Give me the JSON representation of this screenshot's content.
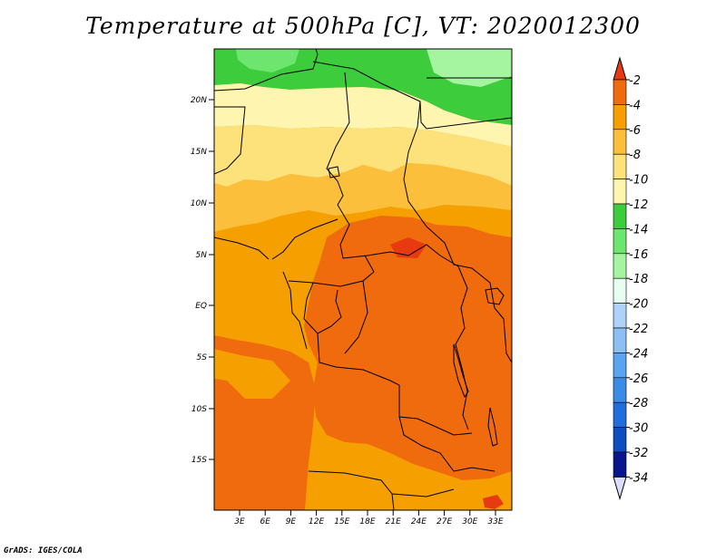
{
  "title": "Temperature at 500hPa [C], VT: 2020012300",
  "credit": "GrADS: IGES/COLA",
  "map": {
    "lon_ticks": [
      "3E",
      "6E",
      "9E",
      "12E",
      "15E",
      "18E",
      "21E",
      "24E",
      "27E",
      "30E",
      "33E"
    ],
    "lat_ticks": [
      "20N",
      "15N",
      "10N",
      "5N",
      "EQ",
      "5S",
      "10S",
      "15S"
    ]
  },
  "colorbar": {
    "labels": [
      "-2",
      "-4",
      "-6",
      "-8",
      "-10",
      "-12",
      "-14",
      "-16",
      "-18",
      "-20",
      "-22",
      "-24",
      "-26",
      "-28",
      "-30",
      "-32",
      "-34"
    ],
    "colors": [
      "#e83a10",
      "#f06a0e",
      "#f5a000",
      "#fbbf3c",
      "#fde17a",
      "#fef6b0",
      "#3dcc3c",
      "#6ee56e",
      "#a5f4a0",
      "#e6fff0",
      "#aed2f8",
      "#8cbff4",
      "#5aa4f0",
      "#3b8ce6",
      "#1f6edc",
      "#0e4dc0",
      "#08168c"
    ],
    "over_color": "#e83a10",
    "under_color": "#dcdcff"
  }
}
